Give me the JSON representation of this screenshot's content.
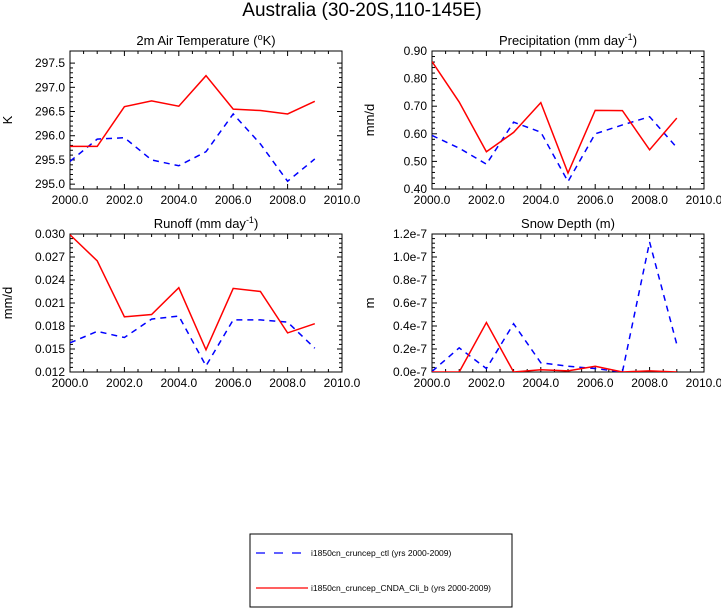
{
  "figure_title": "Australia (30-20S,110-145E)",
  "colors": {
    "ctl": "#0000ff",
    "cnda": "#ff0000",
    "axis": "#000000"
  },
  "legend": [
    {
      "key": "ctl",
      "label": "i1850cn_cruncep_ctl (yrs 2000-2009)",
      "style": "dashed"
    },
    {
      "key": "cnda",
      "label": "i1850cn_cruncep_CNDA_Cli_b (yrs 2000-2009)",
      "style": "solid"
    }
  ],
  "chart_data": [
    {
      "id": "tsa",
      "type": "line",
      "title": "2m Air Temperature (",
      "title_sup": "o",
      "title_end": "K)",
      "xlabel": "",
      "ylabel": "K",
      "xlim": [
        2000,
        2010
      ],
      "ylim": [
        294.9,
        297.75
      ],
      "xticks": [
        "2000.0",
        "2002.0",
        "2004.0",
        "2006.0",
        "2008.0",
        "2010.0"
      ],
      "yticks": [
        "295.0",
        "295.5",
        "296.0",
        "296.5",
        "297.0",
        "297.5"
      ],
      "x": [
        2000,
        2001,
        2002,
        2003,
        2004,
        2005,
        2006,
        2007,
        2008,
        2009
      ],
      "series": [
        {
          "key": "ctl",
          "values": [
            295.47,
            295.93,
            295.96,
            295.5,
            295.38,
            295.67,
            296.45,
            295.83,
            295.06,
            295.52
          ]
        },
        {
          "key": "cnda",
          "values": [
            295.78,
            295.78,
            296.6,
            296.72,
            296.61,
            297.24,
            296.55,
            296.52,
            296.45,
            296.71
          ]
        }
      ]
    },
    {
      "id": "precip",
      "type": "line",
      "title": "Precipitation (mm day",
      "title_sup": "-1",
      "title_end": ")",
      "xlabel": "",
      "ylabel": "mm/d",
      "xlim": [
        2000,
        2010
      ],
      "ylim": [
        0.4,
        0.9
      ],
      "xticks": [
        "2000.0",
        "2002.0",
        "2004.0",
        "2006.0",
        "2008.0",
        "2010.0"
      ],
      "yticks": [
        "0.40",
        "0.50",
        "0.60",
        "0.70",
        "0.80",
        "0.90"
      ],
      "x": [
        2000,
        2001,
        2002,
        2003,
        2004,
        2005,
        2006,
        2007,
        2008,
        2009
      ],
      "series": [
        {
          "key": "ctl",
          "values": [
            0.594,
            0.548,
            0.49,
            0.642,
            0.606,
            0.427,
            0.6,
            0.632,
            0.662,
            0.55
          ]
        },
        {
          "key": "cnda",
          "values": [
            0.862,
            0.715,
            0.535,
            0.605,
            0.713,
            0.458,
            0.685,
            0.684,
            0.542,
            0.657
          ]
        }
      ]
    },
    {
      "id": "runoff",
      "type": "line",
      "title": "Runoff (mm day",
      "title_sup": "-1",
      "title_end": ")",
      "xlabel": "",
      "ylabel": "mm/d",
      "xlim": [
        2000,
        2010
      ],
      "ylim": [
        0.012,
        0.03
      ],
      "xticks": [
        "2000.0",
        "2002.0",
        "2004.0",
        "2006.0",
        "2008.0",
        "2010.0"
      ],
      "yticks": [
        "0.012",
        "0.015",
        "0.018",
        "0.021",
        "0.024",
        "0.027",
        "0.030"
      ],
      "x": [
        2000,
        2001,
        2002,
        2003,
        2004,
        2005,
        2006,
        2007,
        2008,
        2009
      ],
      "series": [
        {
          "key": "ctl",
          "values": [
            0.0158,
            0.0173,
            0.0165,
            0.0189,
            0.0193,
            0.0128,
            0.0188,
            0.0188,
            0.0185,
            0.0151
          ]
        },
        {
          "key": "cnda",
          "values": [
            0.0299,
            0.0265,
            0.0192,
            0.0195,
            0.023,
            0.0149,
            0.0229,
            0.0225,
            0.0171,
            0.0183
          ]
        }
      ]
    },
    {
      "id": "snowdp",
      "type": "line",
      "title": "Snow Depth (m)",
      "title_sup": "",
      "title_end": "",
      "xlabel": "",
      "ylabel": "m",
      "xlim": [
        2000,
        2010
      ],
      "ylim": [
        0,
        1.2e-07
      ],
      "xticks": [
        "2000.0",
        "2002.0",
        "2004.0",
        "2006.0",
        "2008.0",
        "2010.0"
      ],
      "yticks": [
        "0.0e-7",
        "0.2e-7",
        "0.4e-7",
        "0.6e-7",
        "0.8e-7",
        "1.0e-7",
        "1.2e-7"
      ],
      "x": [
        2000,
        2001,
        2002,
        2003,
        2004,
        2005,
        2006,
        2007,
        2008,
        2009
      ],
      "series": [
        {
          "key": "ctl",
          "values": [
            5e-10,
            2.1e-08,
            3e-09,
            4.2e-08,
            8e-09,
            5e-09,
            3e-09,
            0.0,
            1.13e-07,
            2.4e-08
          ]
        },
        {
          "key": "cnda",
          "values": [
            0.0,
            0.0,
            4.3e-08,
            0.0,
            2e-09,
            1e-09,
            5e-09,
            0.0,
            1e-09,
            0.0
          ]
        }
      ]
    }
  ]
}
